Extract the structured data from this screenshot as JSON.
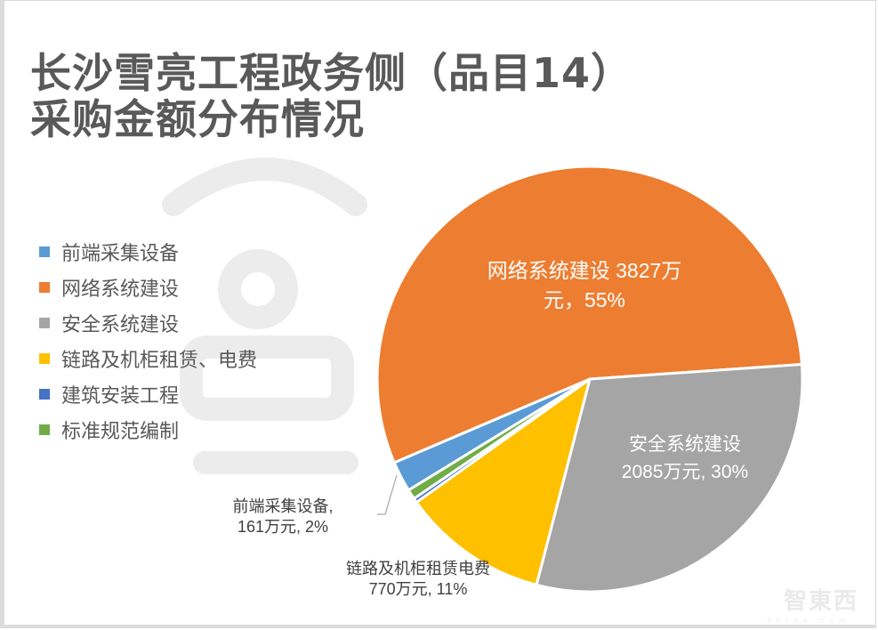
{
  "title": {
    "line1": "长沙雪亮工程政务侧（品目14）",
    "line2": "采购金额分布情况"
  },
  "legend": [
    {
      "label": "前端采集设备",
      "color": "#5b9bd5"
    },
    {
      "label": "网络系统建设",
      "color": "#ed7d31"
    },
    {
      "label": "安全系统建设",
      "color": "#a5a5a5"
    },
    {
      "label": "链路及机柜租赁、电费",
      "color": "#ffc000"
    },
    {
      "label": "建筑安装工程",
      "color": "#4472c4"
    },
    {
      "label": "标准规范编制",
      "color": "#70ad47"
    }
  ],
  "data_labels": {
    "network": {
      "line1": "网络系统建设 3827万",
      "line2": "元，55%"
    },
    "security": {
      "line1": "安全系统建设",
      "line2": "2085万元, 30%"
    },
    "frontend": {
      "line1": "前端采集设备,",
      "line2": "161万元, 2%"
    },
    "link": {
      "line1": "链路及机柜租赁电费",
      "line2": "770万元, 11%"
    }
  },
  "watermark": {
    "logo": "智東西",
    "sub": "zhidx.com"
  },
  "chart_data": {
    "type": "pie",
    "title": "长沙雪亮工程政务侧（品目14）采购金额分布情况",
    "unit": "万元",
    "categories": [
      "前端采集设备",
      "网络系统建设",
      "安全系统建设",
      "链路及机柜租赁、电费",
      "建筑安装工程",
      "标准规范编制"
    ],
    "values": [
      161,
      3827,
      2085,
      770,
      23,
      52
    ],
    "percentages": [
      2,
      55,
      30,
      11,
      null,
      null
    ],
    "colors": [
      "#5b9bd5",
      "#ed7d31",
      "#a5a5a5",
      "#ffc000",
      "#4472c4",
      "#70ad47"
    ],
    "legend_position": "left",
    "start_angle_deg": 148.5,
    "center": [
      663,
      426
    ],
    "radius": 239
  }
}
